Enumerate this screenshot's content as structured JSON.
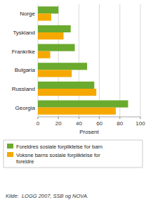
{
  "chart_data": {
    "type": "bar",
    "orientation": "horizontal",
    "categories": [
      "Norge",
      "Tyskland",
      "Frankrike",
      "Bulgaria",
      "Russland",
      "Georgia"
    ],
    "series": [
      {
        "name": "Foreldres sosiale forpliktelse for barn",
        "color": "#6aaa2e",
        "values": [
          20,
          32,
          36,
          48,
          55,
          88
        ]
      },
      {
        "name": "Voksne barns sosiale forpliktelse for\nforeldre",
        "color": "#f5a800",
        "values": [
          13,
          25,
          12,
          33,
          57,
          76
        ]
      }
    ],
    "xlabel": "Prosent",
    "xlim": [
      0,
      100
    ],
    "xticks": [
      0,
      20,
      40,
      60,
      80,
      100
    ],
    "grid": true,
    "legend": "bottom",
    "annotations": [
      "Kilde:  LOGG 2007, SSB og NOVA."
    ]
  }
}
